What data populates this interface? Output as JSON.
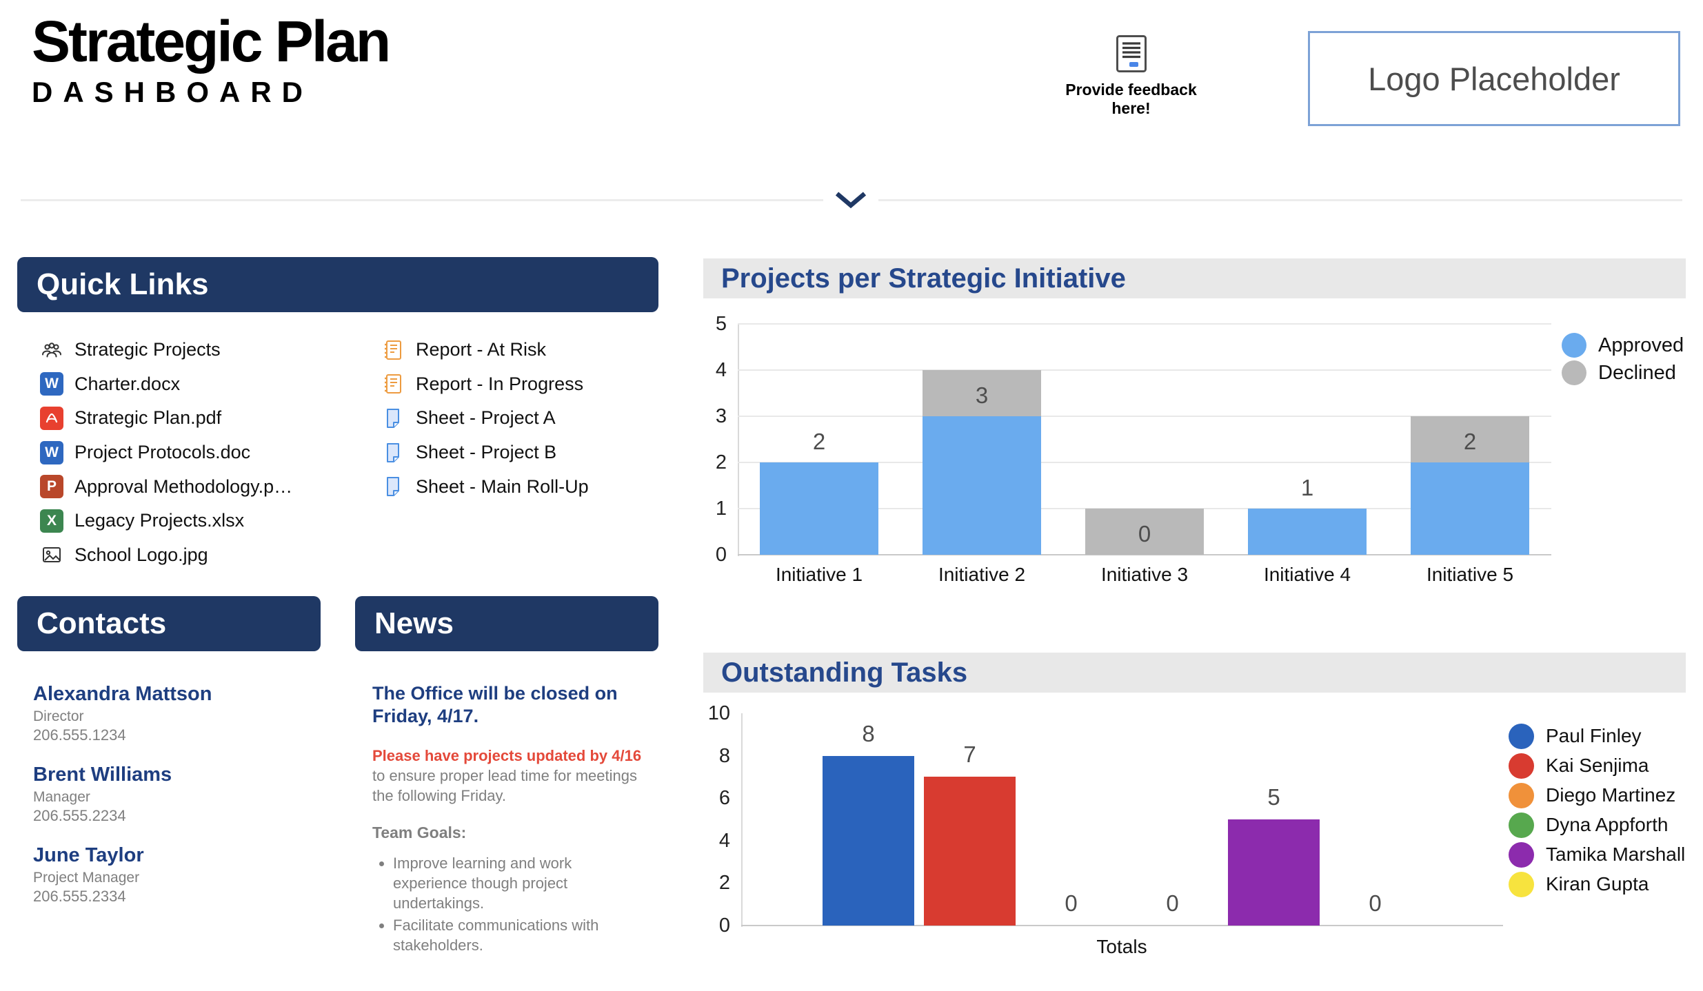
{
  "header": {
    "title": "Strategic Plan",
    "subtitle": "DASHBOARD",
    "feedback_label": "Provide feedback here!",
    "logo_text": "Logo Placeholder"
  },
  "quick_links": {
    "title": "Quick Links",
    "left": [
      {
        "label": "Strategic Projects",
        "icon": "people-icon"
      },
      {
        "label": "Charter.docx",
        "icon": "word-icon",
        "letter": "W",
        "color": "#2e68c0"
      },
      {
        "label": "Strategic Plan.pdf",
        "icon": "pdf-icon",
        "color": "#e8402f"
      },
      {
        "label": "Project Protocols.doc",
        "icon": "word-icon",
        "letter": "W",
        "color": "#2e68c0"
      },
      {
        "label": "Approval Methodology.p…",
        "icon": "powerpoint-icon",
        "letter": "P",
        "color": "#b9472a"
      },
      {
        "label": "Legacy Projects.xlsx",
        "icon": "excel-icon",
        "letter": "X",
        "color": "#3c8650"
      },
      {
        "label": "School Logo.jpg",
        "icon": "image-icon"
      }
    ],
    "right": [
      {
        "label": "Report - At Risk",
        "icon": "report-icon"
      },
      {
        "label": "Report - In Progress",
        "icon": "report-icon"
      },
      {
        "label": "Sheet - Project A",
        "icon": "sheet-icon"
      },
      {
        "label": "Sheet - Project B",
        "icon": "sheet-icon"
      },
      {
        "label": "Sheet - Main Roll-Up",
        "icon": "sheet-icon"
      }
    ]
  },
  "contacts": {
    "title": "Contacts",
    "people": [
      {
        "name": "Alexandra Mattson",
        "role": "Director",
        "phone": "206.555.1234"
      },
      {
        "name": "Brent Williams",
        "role": "Manager",
        "phone": "206.555.2234"
      },
      {
        "name": "June Taylor",
        "role": "Project Manager",
        "phone": "206.555.2334"
      }
    ]
  },
  "news": {
    "title": "News",
    "headline": "The Office will be closed on Friday, 4/17.",
    "alert_bold": "Please have projects updated by 4/16",
    "alert_rest": " to ensure proper lead time for meetings the following Friday.",
    "goals_label": "Team Goals:",
    "goals": [
      "Improve learning and work experience though project undertakings.",
      "Facilitate communications with stakeholders."
    ]
  },
  "chart_data": [
    {
      "type": "bar",
      "stacked": true,
      "title": "Projects per Strategic Initiative",
      "categories": [
        "Initiative 1",
        "Initiative 2",
        "Initiative 3",
        "Initiative 4",
        "Initiative 5"
      ],
      "series": [
        {
          "name": "Approved",
          "color": "#6aabee",
          "values": [
            2,
            3,
            0,
            1,
            2
          ]
        },
        {
          "name": "Declined",
          "color": "#b9b9b9",
          "values": [
            0,
            1,
            1,
            0,
            1
          ]
        }
      ],
      "bar_labels": [
        "2",
        "3",
        "0",
        "1",
        "2"
      ],
      "ylim": [
        0,
        5
      ],
      "yticks": [
        0,
        1,
        2,
        3,
        4,
        5
      ],
      "grid": true,
      "legend_position": "top-right"
    },
    {
      "type": "bar",
      "stacked": false,
      "title": "Outstanding Tasks",
      "categories": [
        "Totals"
      ],
      "xlabel": "Totals",
      "series": [
        {
          "name": "Paul Finley",
          "color": "#2a63bc",
          "values": [
            8
          ]
        },
        {
          "name": "Kai Senjima",
          "color": "#d83b30",
          "values": [
            7
          ]
        },
        {
          "name": "Diego Martinez",
          "color": "#f0913a",
          "values": [
            0
          ]
        },
        {
          "name": "Dyna Appforth",
          "color": "#57a84e",
          "values": [
            0
          ]
        },
        {
          "name": "Tamika Marshall",
          "color": "#8c2bad",
          "values": [
            5
          ]
        },
        {
          "name": "Kiran Gupta",
          "color": "#f7e33e",
          "values": [
            0
          ]
        }
      ],
      "bar_labels": [
        "8",
        "7",
        "0",
        "0",
        "5",
        "0"
      ],
      "ylim": [
        0,
        10
      ],
      "yticks": [
        0,
        2,
        4,
        6,
        8,
        10
      ],
      "grid": false,
      "legend_position": "right"
    }
  ]
}
